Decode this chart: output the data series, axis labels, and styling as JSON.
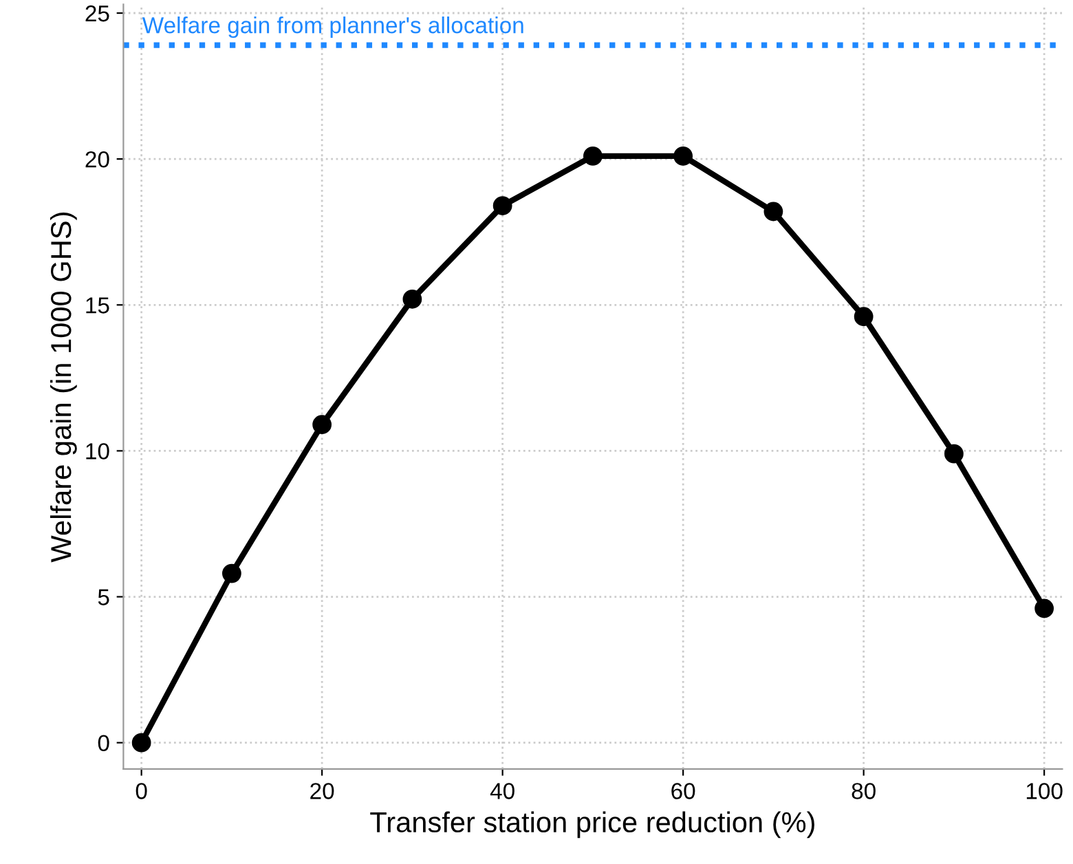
{
  "chart_data": {
    "type": "line",
    "xlabel": "Transfer station price reduction (%)",
    "ylabel": "Welfare gain (in 1000 GHS)",
    "x": [
      0,
      10,
      20,
      30,
      40,
      50,
      60,
      70,
      80,
      90,
      100
    ],
    "series": [
      {
        "color": "#000000",
        "values": [
          0,
          5.8,
          10.9,
          15.2,
          18.4,
          20.1,
          20.1,
          18.2,
          14.6,
          9.9,
          4.6
        ]
      }
    ],
    "marker": "circle",
    "line_style": "solid",
    "grid": true,
    "xlim": [
      -2,
      102
    ],
    "xticks": [
      0,
      20,
      40,
      60,
      80,
      100
    ],
    "ylim": [
      -0.9,
      25.3
    ],
    "yticks": [
      0,
      5,
      10,
      15,
      20,
      25
    ],
    "ref_lines": [
      {
        "axis": "y",
        "value": 23.9,
        "label": "Welfare gain from planner's allocation",
        "color": "#1e88ff",
        "line_style": "dotted"
      }
    ]
  }
}
